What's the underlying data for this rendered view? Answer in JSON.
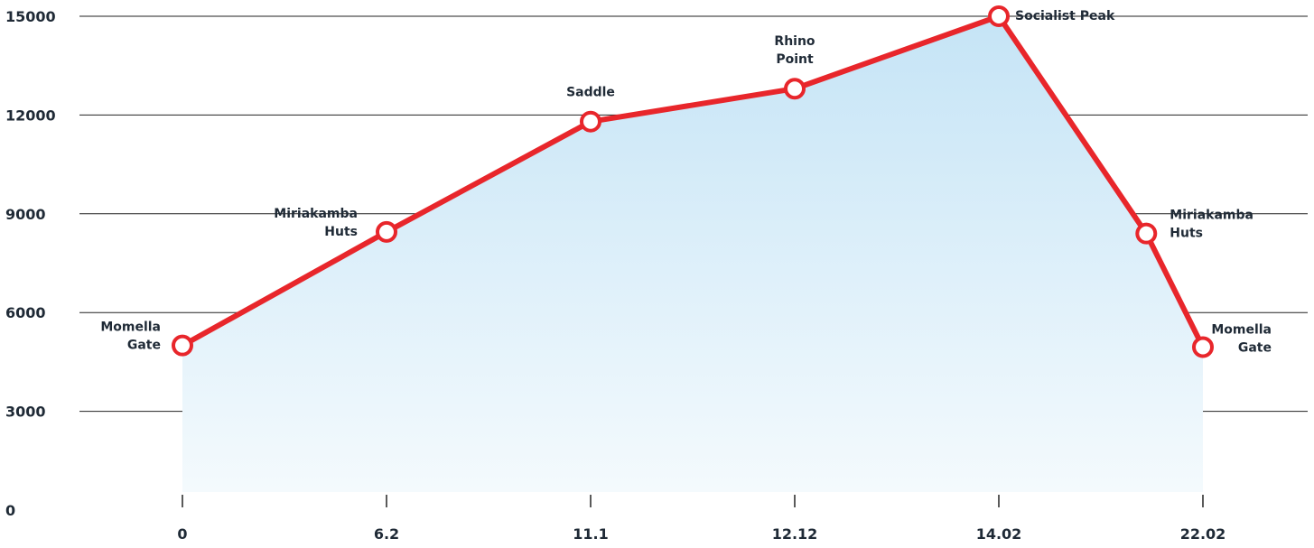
{
  "chart_data": {
    "type": "area",
    "x_ticks": [
      "0",
      "6.2",
      "11.1",
      "12.12",
      "14.02",
      "22.02"
    ],
    "y_ticks": [
      0,
      3000,
      6000,
      9000,
      12000,
      15000
    ],
    "ylim": [
      0,
      15000
    ],
    "grid": true,
    "title": "",
    "xlabel": "",
    "ylabel": "",
    "points": [
      {
        "x": 0,
        "y": 5000,
        "label": [
          "Momella",
          "Gate"
        ]
      },
      {
        "x": 6.2,
        "y": 8450,
        "label": [
          "Miriakamba",
          "Huts"
        ]
      },
      {
        "x": 11.1,
        "y": 11800,
        "label": [
          "Saddle"
        ]
      },
      {
        "x": 12.12,
        "y": 12800,
        "label": [
          "Rhino",
          "Point"
        ]
      },
      {
        "x": 14.02,
        "y": 15000,
        "label": [
          "Socialist Peak"
        ]
      },
      {
        "x": 19.8,
        "y": 8400,
        "label": [
          "Miriakamba",
          "Huts"
        ]
      },
      {
        "x": 22.02,
        "y": 4950,
        "label": [
          "Momella",
          "Gate"
        ]
      }
    ],
    "colors": {
      "line": "#e8262b",
      "marker_fill": "#ffffff",
      "area_top": "#c5e4f6",
      "area_bottom": "#f4fafd",
      "grid": "#222222",
      "text": "#1f2a36"
    }
  }
}
